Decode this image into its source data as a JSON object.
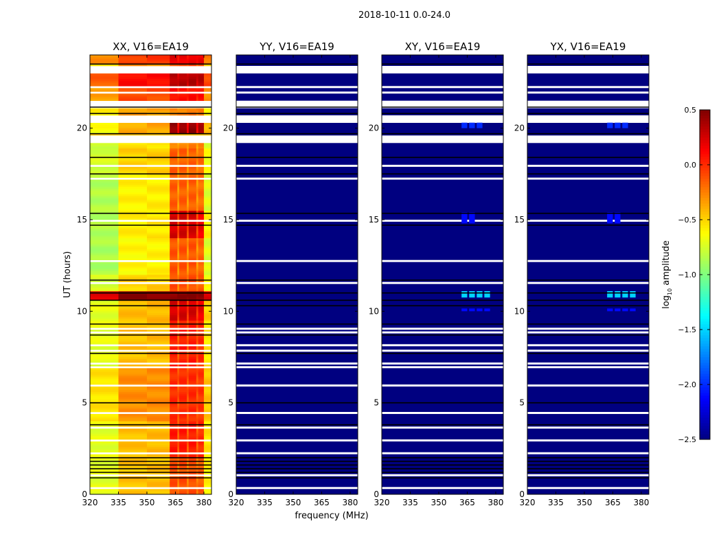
{
  "chart_data": {
    "type": "heatmap",
    "title": "2018-10-11 0.0-24.0",
    "xlabel": "frequency (MHz)",
    "ylabel": "UT (hours)",
    "xlim": [
      320,
      384
    ],
    "ylim": [
      0,
      24
    ],
    "xticks": [
      "320",
      "335",
      "350",
      "365",
      "380"
    ],
    "xtick_values": [
      320,
      335,
      350,
      365,
      380
    ],
    "yticks": [
      "0",
      "5",
      "10",
      "15",
      "20"
    ],
    "ytick_values": [
      0,
      5,
      10,
      15,
      20
    ],
    "colorbar": {
      "label": "log10 amplitude",
      "label_main": "log",
      "label_sub": "10",
      "label_rest": " amplitude",
      "range": [
        -2.5,
        0.5
      ],
      "ticks": [
        "0.5",
        "0.0",
        "−0.5",
        "−1.0",
        "−1.5",
        "−2.0",
        "−2.5"
      ],
      "tick_values": [
        0.5,
        0.0,
        -0.5,
        -1.0,
        -1.5,
        -2.0,
        -2.5
      ],
      "colormap": "jet"
    },
    "missing_data_hours": [
      [
        23.45,
        23.05
      ],
      [
        22.35,
        22.25
      ],
      [
        22.05,
        21.95
      ],
      [
        21.5,
        21.45
      ],
      [
        21.4,
        21.1
      ],
      [
        20.7,
        20.35
      ],
      [
        19.65,
        19.2
      ],
      [
        18.95,
        18.9
      ],
      [
        18.7,
        18.65
      ],
      [
        17.95,
        17.9
      ],
      [
        17.6,
        17.55
      ],
      [
        17.25,
        17.2
      ],
      [
        16.3,
        16.25
      ],
      [
        15.7,
        15.65
      ],
      [
        14.95,
        14.9
      ],
      [
        14.6,
        14.55
      ],
      [
        14.2,
        14.15
      ],
      [
        13.5,
        13.45
      ],
      [
        13.2,
        13.15
      ],
      [
        12.75,
        12.7
      ],
      [
        12.3,
        12.25
      ],
      [
        11.55,
        11.45
      ],
      [
        9.05,
        9.0
      ],
      [
        8.85,
        8.75
      ],
      [
        8.5,
        8.45
      ],
      [
        8.15,
        8.1
      ],
      [
        7.9,
        7.8
      ],
      [
        7.6,
        7.55
      ],
      [
        7.4,
        7.35
      ],
      [
        7.15,
        7.1
      ],
      [
        6.95,
        6.9
      ],
      [
        6.7,
        6.65
      ],
      [
        6.4,
        6.35
      ],
      [
        5.95,
        5.9
      ],
      [
        4.5,
        4.45
      ],
      [
        3.7,
        3.65
      ],
      [
        3.35,
        3.3
      ],
      [
        3.0,
        2.95
      ],
      [
        2.3,
        2.25
      ],
      [
        1.05,
        1.0
      ],
      [
        0.75,
        0.7
      ],
      [
        0.45,
        0.35
      ]
    ],
    "flagged_hours": [
      23.5,
      21.15,
      20.8,
      19.7,
      18.4,
      17.5,
      15.35,
      14.7,
      11.7,
      11.0,
      10.6,
      10.3,
      9.3,
      8.7,
      7.7,
      5.0,
      3.8,
      2.0,
      1.8,
      1.6,
      1.4,
      1.2,
      0.9
    ],
    "panels": [
      {
        "title": "XX, V16=EA19",
        "background": -0.45,
        "segments": [
          [
            23.5,
            24,
            -0.05,
            0.25
          ],
          [
            23.0,
            23.5,
            -0.3,
            0.2
          ],
          [
            22.3,
            23.0,
            0.1,
            0.25
          ],
          [
            21.4,
            22.3,
            -0.1,
            0.2
          ],
          [
            20.7,
            21.1,
            -0.35,
            0.1
          ],
          [
            19.7,
            20.35,
            -0.4,
            0.85
          ],
          [
            18.9,
            19.2,
            -0.55,
            0.3
          ],
          [
            17.5,
            18.9,
            -0.5,
            0.35
          ],
          [
            15.5,
            17.5,
            -0.6,
            0.45
          ],
          [
            14.0,
            15.5,
            -0.6,
            0.85
          ],
          [
            12.0,
            14.0,
            -0.62,
            0.5
          ],
          [
            11.1,
            12.0,
            -0.5,
            0.4
          ],
          [
            10.55,
            11.1,
            0.48,
            0.0
          ],
          [
            9.5,
            10.55,
            -0.45,
            0.7
          ],
          [
            7.0,
            9.5,
            -0.45,
            0.5
          ],
          [
            4.0,
            7.0,
            -0.3,
            0.3
          ],
          [
            2.0,
            4.0,
            -0.45,
            0.5
          ],
          [
            0,
            2.0,
            -0.45,
            0.35
          ]
        ],
        "spots": []
      },
      {
        "title": "YY, V16=EA19",
        "background": -2.5,
        "segments": [],
        "spots": []
      },
      {
        "title": "XY, V16=EA19",
        "background": -2.5,
        "segments": [],
        "spots": [
          [
            10.75,
            11.1,
            362,
            376,
            -1.5
          ],
          [
            20.0,
            20.3,
            362,
            372,
            -2.0
          ],
          [
            14.8,
            15.4,
            362,
            370,
            -2.1
          ],
          [
            10.0,
            10.15,
            362,
            376,
            -2.1
          ]
        ]
      },
      {
        "title": "YX, V16=EA19",
        "background": -2.5,
        "segments": [],
        "spots": [
          [
            10.75,
            11.1,
            362,
            376,
            -1.5
          ],
          [
            20.0,
            20.3,
            362,
            372,
            -2.0
          ],
          [
            14.8,
            15.4,
            362,
            370,
            -2.1
          ],
          [
            10.0,
            10.15,
            362,
            376,
            -2.1
          ]
        ]
      }
    ]
  }
}
